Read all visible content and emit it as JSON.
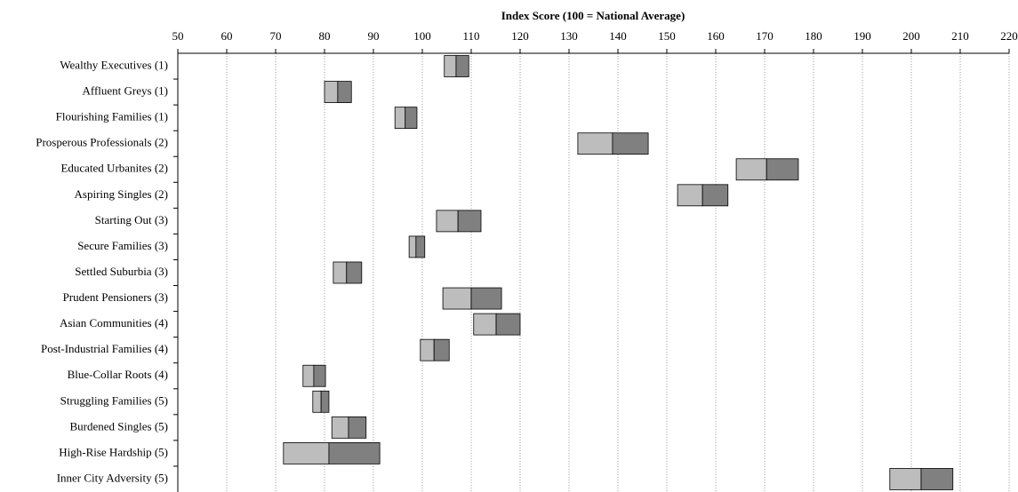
{
  "chart_data": {
    "type": "floating-bar",
    "xlabel": "Index Score (100 = National Average)",
    "categories": [
      "Wealthy Executives (1)",
      "Affluent Greys (1)",
      "Flourishing Families (1)",
      "Prosperous Professionals (2)",
      "Educated Urbanites (2)",
      "Aspiring Singles (2)",
      "Starting Out (3)",
      "Secure Families (3)",
      "Settled Suburbia (3)",
      "Prudent Pensioners (3)",
      "Asian Communities (4)",
      "Post-Industrial Families (4)",
      "Blue-Collar Roots (4)",
      "Struggling Families (5)",
      "Burdened Singles (5)",
      "High-Rise Hardship (5)",
      "Inner City Adversity (5)"
    ],
    "low": [
      104.5,
      80.0,
      94.4,
      131.8,
      164.2,
      152.2,
      102.9,
      97.3,
      81.8,
      104.2,
      110.5,
      99.6,
      75.6,
      77.6,
      81.5,
      71.6,
      195.6
    ],
    "mid": [
      106.9,
      82.7,
      96.5,
      138.9,
      170.4,
      157.3,
      107.3,
      98.7,
      84.5,
      110.0,
      115.1,
      102.4,
      77.8,
      79.3,
      84.9,
      80.9,
      202.0
    ],
    "high": [
      109.5,
      85.5,
      98.9,
      146.2,
      176.9,
      162.5,
      112.0,
      100.5,
      87.6,
      116.2,
      120.0,
      105.5,
      80.2,
      80.9,
      88.5,
      91.3,
      208.5
    ],
    "lower_color": "#bdbdbd",
    "upper_color": "#808080",
    "xlim": [
      50,
      220
    ],
    "xticks": [
      50,
      60,
      70,
      80,
      90,
      100,
      110,
      120,
      130,
      140,
      150,
      160,
      170,
      180,
      190,
      200,
      210,
      220
    ],
    "grid": true
  }
}
